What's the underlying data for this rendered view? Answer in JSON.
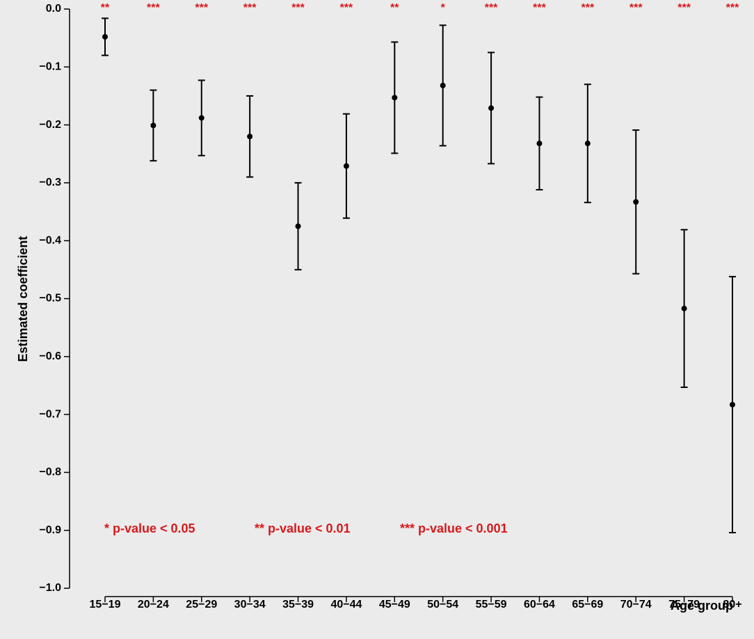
{
  "chart_data": {
    "type": "errorbar",
    "y_label": "Estimated coefficient",
    "x_label": "Age group",
    "categories": [
      "15−19",
      "20−24",
      "25−29",
      "30−34",
      "35−39",
      "40−44",
      "45−49",
      "50−54",
      "55−59",
      "60−64",
      "65−69",
      "70−74",
      "75−79",
      "80+"
    ],
    "values": [
      -0.048,
      -0.201,
      -0.188,
      -0.22,
      -0.375,
      -0.271,
      -0.153,
      -0.132,
      -0.171,
      -0.232,
      -0.232,
      -0.333,
      -0.517,
      -0.683
    ],
    "errors": [
      0.032,
      0.061,
      0.065,
      0.07,
      0.075,
      0.09,
      0.096,
      0.104,
      0.096,
      0.08,
      0.102,
      0.124,
      0.136,
      0.221
    ],
    "significance": [
      "**",
      "***",
      "***",
      "***",
      "***",
      "***",
      "**",
      "*",
      "***",
      "***",
      "***",
      "***",
      "***",
      "***"
    ],
    "legend": [
      "* p-value < 0.05",
      "** p-value < 0.01",
      "*** p-value < 0.001"
    ],
    "color": "#000000",
    "annotation_color": "#d7191c",
    "ylim": [
      -1.0,
      0.0
    ],
    "yticks": [
      {
        "value": 0,
        "label": "0.0"
      },
      {
        "value": -0.1,
        "label": "−0.1"
      },
      {
        "value": -0.2,
        "label": "−0.2"
      },
      {
        "value": -0.3,
        "label": "−0.3"
      },
      {
        "value": -0.4,
        "label": "−0.4"
      },
      {
        "value": -0.5,
        "label": "−0.5"
      },
      {
        "value": -0.6,
        "label": "−0.6"
      },
      {
        "value": -0.7,
        "label": "−0.7"
      },
      {
        "value": -0.8,
        "label": "−0.8"
      },
      {
        "value": -0.9,
        "label": "−0.9"
      },
      {
        "value": -1.0,
        "label": "−1.0"
      }
    ]
  }
}
